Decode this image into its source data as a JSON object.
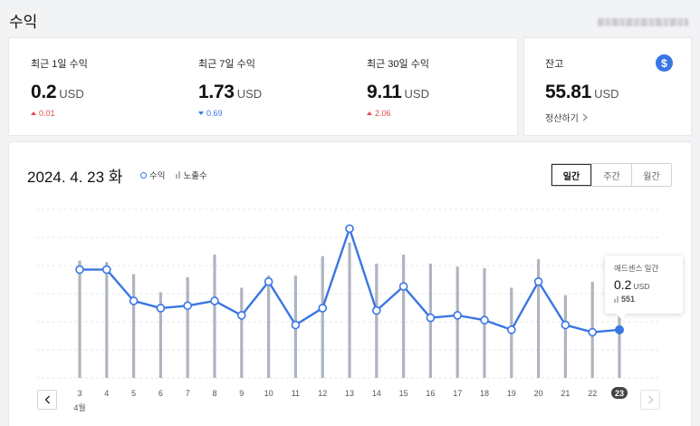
{
  "page": {
    "title": "수익"
  },
  "stats": [
    {
      "label": "최근 1일 수익",
      "value": "0.2",
      "unit": "USD",
      "change": "0.01",
      "direction": "up"
    },
    {
      "label": "최근 7일 수익",
      "value": "1.73",
      "unit": "USD",
      "change": "0.69",
      "direction": "down"
    },
    {
      "label": "최근 30일 수익",
      "value": "9.11",
      "unit": "USD",
      "change": "2.06",
      "direction": "up"
    }
  ],
  "balance": {
    "label": "잔고",
    "value": "55.81",
    "unit": "USD",
    "settle_label": "정산하기",
    "icon": "dollar-icon"
  },
  "chart_header": {
    "date": "2024. 4. 23 화",
    "legend": {
      "revenue": "수익",
      "impressions": "노출수"
    },
    "tabs": [
      "일간",
      "주간",
      "월간"
    ],
    "active_tab": 0
  },
  "tooltip": {
    "title": "애드센스 일간",
    "value": "0.2",
    "unit": "USD",
    "impressions": "551"
  },
  "colors": {
    "accent": "#3a76e3",
    "bars": "#aeb5c0",
    "up": "#e5484d",
    "down": "#3a76e3"
  },
  "chart_data": {
    "type": "line",
    "month_label": "4월",
    "x": [
      "3",
      "4",
      "5",
      "6",
      "7",
      "8",
      "9",
      "10",
      "11",
      "12",
      "13",
      "14",
      "15",
      "16",
      "17",
      "18",
      "19",
      "20",
      "21",
      "22",
      "23"
    ],
    "selected_index": 20,
    "series": [
      {
        "name": "수익",
        "type": "line",
        "values": [
          0.45,
          0.45,
          0.32,
          0.29,
          0.3,
          0.32,
          0.26,
          0.4,
          0.22,
          0.29,
          0.62,
          0.28,
          0.38,
          0.25,
          0.26,
          0.24,
          0.2,
          0.4,
          0.22,
          0.19,
          0.2
        ]
      },
      {
        "name": "노출수",
        "type": "bar",
        "values": [
          0.78,
          0.77,
          0.69,
          0.57,
          0.67,
          0.82,
          0.6,
          0.68,
          0.68,
          0.81,
          0.9,
          0.76,
          0.82,
          0.76,
          0.74,
          0.73,
          0.6,
          0.79,
          0.55,
          0.64,
          0.53
        ]
      }
    ],
    "legend_position": "top-left",
    "grid": true
  }
}
